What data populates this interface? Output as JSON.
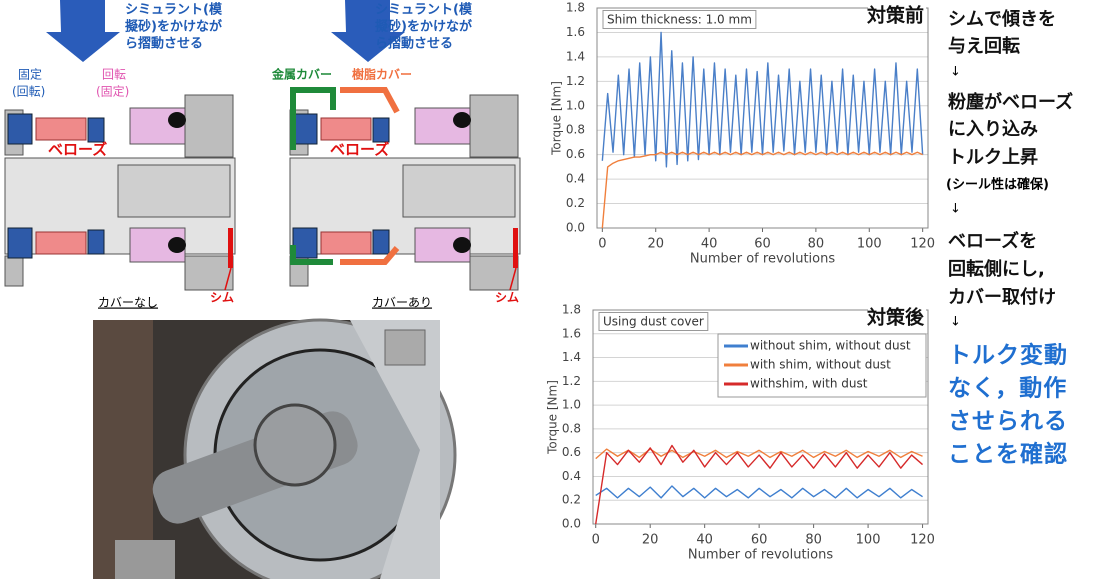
{
  "diagrams": [
    {
      "instruction": [
        "シミュラント(模",
        "擬砂)をかけなが",
        "ら摺動させる"
      ],
      "fixed_label": [
        "固定",
        "(回転)"
      ],
      "rotating_label": [
        "回転",
        "(固定)"
      ],
      "bellows": "ベローズ",
      "shim": "シム",
      "caption": "カバーなし"
    },
    {
      "instruction": [
        "シミュラント(模",
        "擬砂)をかけなが",
        "ら摺動させる"
      ],
      "metal_cover": "金属カバー",
      "resin_cover": "樹脂カバー",
      "bellows": "ベローズ",
      "shim": "シム",
      "caption": "カバーあり"
    }
  ],
  "notes": {
    "steps": [
      "シムで傾きを",
      "与え回転",
      "↓",
      "粉塵がベローズ",
      "に入り込み",
      "トルク上昇",
      "(シール性は確保)",
      "↓",
      "ベローズを",
      "回転側にし,",
      "カバー取付け",
      "↓"
    ],
    "conclusion": [
      "トルク変動",
      "なく，動作",
      "させられる",
      "ことを確認"
    ]
  },
  "chart_data": [
    {
      "type": "line",
      "title": "対策前",
      "annotation": "Shim thickness: 1.0 mm",
      "xlabel": "Number of revolutions",
      "ylabel": "Torque [Nm]",
      "grid": true,
      "xlim": [
        -2,
        122
      ],
      "ylim": [
        0,
        1.8
      ],
      "xticks": [
        0,
        20,
        40,
        60,
        80,
        100,
        120
      ],
      "yticks": [
        {
          "value": 0,
          "label": "0.0"
        },
        0.2,
        0.4,
        0.6,
        0.8,
        {
          "value": 1,
          "label": "1.0"
        },
        1.2,
        1.4,
        1.6,
        1.8
      ],
      "x": [
        0,
        2,
        4,
        6,
        8,
        10,
        12,
        14,
        16,
        18,
        20,
        22,
        24,
        26,
        28,
        30,
        32,
        34,
        36,
        38,
        40,
        42,
        44,
        46,
        48,
        50,
        52,
        54,
        56,
        58,
        60,
        62,
        64,
        66,
        68,
        70,
        72,
        74,
        76,
        78,
        80,
        82,
        84,
        86,
        88,
        90,
        92,
        94,
        96,
        98,
        100,
        102,
        104,
        106,
        108,
        110,
        112,
        114,
        116,
        118,
        120
      ],
      "series": [
        {
          "color": "#4a7fc8",
          "values": [
            0.55,
            1.1,
            0.62,
            1.25,
            0.6,
            1.3,
            0.58,
            1.35,
            0.6,
            1.4,
            0.55,
            1.6,
            0.5,
            1.45,
            0.52,
            1.35,
            0.55,
            1.4,
            0.56,
            1.3,
            0.6,
            1.35,
            0.6,
            1.3,
            0.62,
            1.25,
            0.6,
            1.3,
            0.62,
            1.28,
            0.6,
            1.35,
            0.62,
            1.25,
            0.63,
            1.3,
            0.6,
            1.2,
            0.62,
            1.3,
            0.62,
            1.25,
            0.6,
            1.2,
            0.62,
            1.3,
            0.6,
            1.25,
            0.62,
            1.2,
            0.6,
            1.3,
            0.62,
            1.2,
            0.6,
            1.35,
            0.6,
            1.2,
            0.62,
            1.3,
            0.6
          ]
        },
        {
          "color": "#f07f3c",
          "values": [
            0,
            0.5,
            0.53,
            0.55,
            0.56,
            0.57,
            0.58,
            0.58,
            0.59,
            0.6,
            0.6,
            0.62,
            0.6,
            0.62,
            0.6,
            0.62,
            0.6,
            0.62,
            0.6,
            0.62,
            0.6,
            0.62,
            0.6,
            0.62,
            0.6,
            0.62,
            0.6,
            0.62,
            0.6,
            0.62,
            0.6,
            0.62,
            0.6,
            0.62,
            0.6,
            0.62,
            0.6,
            0.62,
            0.6,
            0.62,
            0.6,
            0.62,
            0.6,
            0.62,
            0.6,
            0.62,
            0.6,
            0.62,
            0.6,
            0.62,
            0.6,
            0.62,
            0.6,
            0.62,
            0.6,
            0.62,
            0.6,
            0.62,
            0.6,
            0.62,
            0.6
          ]
        }
      ]
    },
    {
      "type": "line",
      "title": "対策後",
      "annotation": "Using dust cover",
      "xlabel": "Number of revolutions",
      "ylabel": "Torque [Nm]",
      "grid": true,
      "legend": "upper right",
      "xlim": [
        -1,
        122
      ],
      "ylim": [
        0,
        1.8
      ],
      "xticks": [
        0,
        20,
        40,
        60,
        80,
        100,
        120
      ],
      "yticks": [
        {
          "value": 0,
          "label": "0.0"
        },
        0.2,
        0.4,
        0.6,
        0.8,
        {
          "value": 1,
          "label": "1.0"
        },
        1.2,
        1.4,
        1.6,
        1.8
      ],
      "x": [
        0,
        4,
        8,
        12,
        16,
        20,
        24,
        28,
        32,
        36,
        40,
        44,
        48,
        52,
        56,
        60,
        64,
        68,
        72,
        76,
        80,
        84,
        88,
        92,
        96,
        100,
        104,
        108,
        112,
        116,
        120
      ],
      "series": [
        {
          "name": "without shim, without dust",
          "color": "#3f7fcf",
          "values": [
            0.24,
            0.3,
            0.22,
            0.3,
            0.23,
            0.31,
            0.22,
            0.32,
            0.23,
            0.3,
            0.22,
            0.3,
            0.23,
            0.29,
            0.22,
            0.3,
            0.23,
            0.29,
            0.22,
            0.3,
            0.23,
            0.29,
            0.22,
            0.3,
            0.22,
            0.29,
            0.23,
            0.3,
            0.22,
            0.29,
            0.23
          ]
        },
        {
          "name": "with shim, without dust",
          "color": "#f07f3c",
          "values": [
            0.55,
            0.63,
            0.57,
            0.62,
            0.56,
            0.63,
            0.57,
            0.62,
            0.56,
            0.61,
            0.57,
            0.62,
            0.56,
            0.61,
            0.57,
            0.62,
            0.56,
            0.61,
            0.57,
            0.62,
            0.56,
            0.61,
            0.57,
            0.62,
            0.56,
            0.61,
            0.57,
            0.62,
            0.56,
            0.61,
            0.57
          ]
        },
        {
          "name": "withshim, with dust",
          "color": "#d62a2a",
          "values": [
            0,
            0.6,
            0.5,
            0.62,
            0.52,
            0.64,
            0.5,
            0.66,
            0.52,
            0.62,
            0.48,
            0.6,
            0.5,
            0.6,
            0.48,
            0.58,
            0.47,
            0.6,
            0.48,
            0.58,
            0.47,
            0.59,
            0.48,
            0.6,
            0.47,
            0.58,
            0.48,
            0.6,
            0.47,
            0.58,
            0.5
          ]
        }
      ]
    }
  ]
}
